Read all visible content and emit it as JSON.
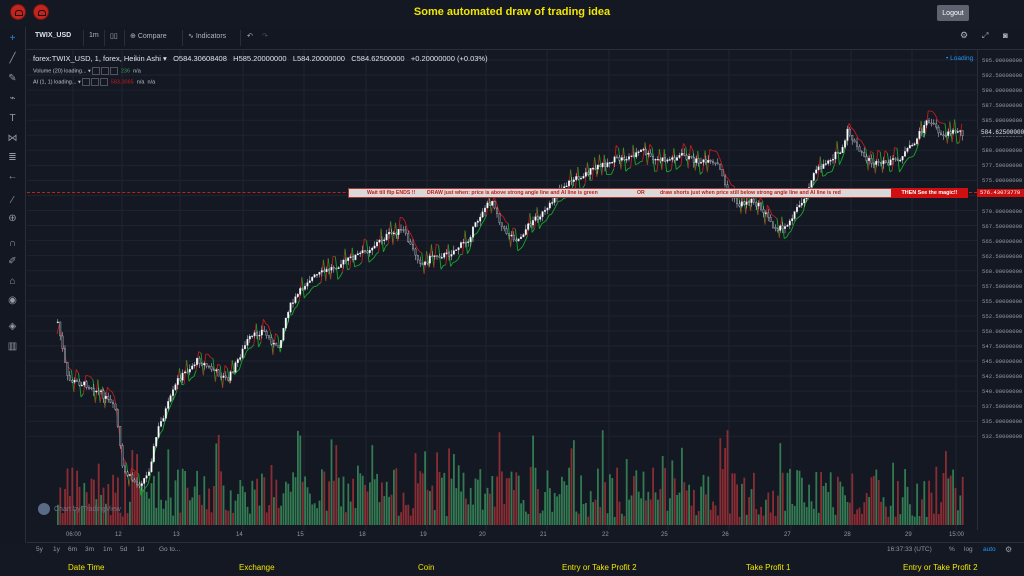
{
  "header": {
    "title": "Some automated draw of trading idea",
    "logout_label": "Logout"
  },
  "toolbar": {
    "symbol": "TWIX_USD",
    "interval": "1m",
    "compare_label": "Compare",
    "indicators_label": "Indicators"
  },
  "legend": {
    "main": "forex:TWIX_USD, 1, forex, Heikin Ashi",
    "open": "O584.30608408",
    "high": "H585.20000000",
    "low": "L584.20000000",
    "close": "C584.62500000",
    "change": "+0.20000000 (+0.03%)",
    "volume_label": "Volume (20) loading...",
    "volume_value": "236",
    "volume_na": "n/a",
    "ai_label": "AI (1, 1) loading...",
    "ai_value": "583.3065",
    "ai_na1": "n/a",
    "ai_na2": "n/a"
  },
  "status": {
    "loading": "Loading"
  },
  "annotation": {
    "text1": "Wait till flip ENDS !!",
    "text2": "DRAW just when: price is above strong angle line and AI line is green",
    "text3": "OR",
    "text4": "draw shorts just when price still below strong angle line and AI line is red",
    "magic": "THEN See the magic!!",
    "price_label": "576.43073779"
  },
  "price_axis": {
    "ticks": [
      "595.00000000",
      "592.50000000",
      "590.00000000",
      "587.50000000",
      "585.00000000",
      "582.50000000",
      "580.00000000",
      "577.50000000",
      "575.00000000",
      "572.50000000",
      "570.00000000",
      "567.50000000",
      "565.00000000",
      "562.50000000",
      "560.00000000",
      "557.50000000",
      "555.00000000",
      "552.50000000",
      "550.00000000",
      "547.50000000",
      "545.00000000",
      "542.50000000",
      "540.00000000",
      "537.50000000",
      "535.00000000",
      "532.50000000"
    ],
    "current": "584.62500000"
  },
  "time_axis": {
    "ticks": [
      "06:00",
      "12",
      "13",
      "14",
      "15",
      "18",
      "19",
      "20",
      "21",
      "22",
      "25",
      "26",
      "27",
      "28",
      "29",
      "15:00"
    ]
  },
  "bottom": {
    "ranges": [
      "5y",
      "1y",
      "6m",
      "3m",
      "1m",
      "5d",
      "1d"
    ],
    "goto": "Go to...",
    "clock": "16:37:33 (UTC)",
    "percent": "%",
    "log": "log",
    "auto": "auto"
  },
  "watermark": "Chart by TradingView",
  "footer": {
    "cols": [
      "Date Time",
      "Exchange",
      "Coin",
      "Entry or Take Profit 2",
      "Take Profit 1",
      "Entry or Take Profit 2"
    ]
  },
  "colors": {
    "up": "#3c9b62",
    "down": "#b2343a",
    "ai_green": "#16a82a",
    "ai_red": "#c21d1d",
    "accent": "#f2e600"
  }
}
